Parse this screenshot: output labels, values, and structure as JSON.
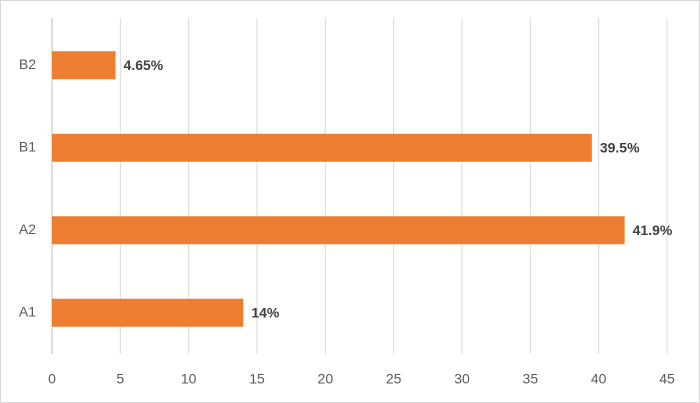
{
  "chart_data": {
    "type": "bar",
    "orientation": "horizontal",
    "categories": [
      "A1",
      "A2",
      "B1",
      "B2"
    ],
    "values": [
      14,
      41.9,
      39.5,
      4.65
    ],
    "value_labels": [
      "14%",
      "41.9%",
      "39.5%",
      "4.65%"
    ],
    "color": "#ed7d31",
    "xlim": [
      0,
      45
    ],
    "xticks": [
      0,
      5,
      10,
      15,
      20,
      25,
      30,
      35,
      40,
      45
    ],
    "grid": true
  }
}
